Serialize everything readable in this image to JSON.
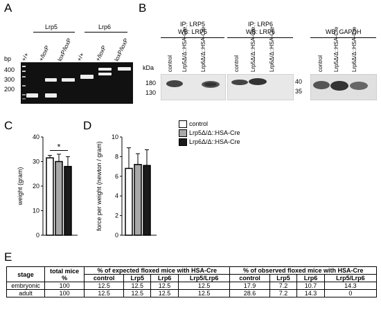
{
  "panel_letters": [
    "A",
    "B",
    "C",
    "D",
    "E"
  ],
  "panelA": {
    "gene_labels": [
      "Lrp5",
      "Lrp6"
    ],
    "lane_labels": [
      "+/+",
      "+/loxP",
      "loxP/loxP",
      "+/+",
      "+/loxP",
      "loxP/loxP"
    ],
    "bp_label": "bp",
    "bp_ticks": [
      "400",
      "300",
      "200"
    ]
  },
  "panelB": {
    "blot1_header": [
      "IP: LRP5",
      "WB: LRP5"
    ],
    "blot2_header": [
      "IP: LRP6",
      "WB: LRP6"
    ],
    "blot3_header": [
      "WB: GAPDH"
    ],
    "lanes": [
      "control",
      "Lrp5Δ/Δ::HSA-Cre",
      "Lrp6Δ/Δ::HSA-Cre"
    ],
    "kda_label": "kDa",
    "kda_ticks_left": [
      "180",
      "130"
    ],
    "kda_ticks_right": [
      "40",
      "35"
    ]
  },
  "legend": [
    "control",
    "Lrp5Δ/Δ::HSA-Cre",
    "Lrp6Δ/Δ::HSA-Cre"
  ],
  "legend_colors": [
    "#ffffff",
    "#a8a8a8",
    "#1a1a1a"
  ],
  "chart_data": [
    {
      "type": "bar",
      "categories": [
        "control",
        "Lrp5Δ/Δ::HSA-Cre",
        "Lrp6Δ/Δ::HSA-Cre"
      ],
      "values": [
        31.5,
        30,
        28
      ],
      "errors": [
        1,
        3,
        4
      ],
      "ylabel": "weight (gram)",
      "yticks": [
        0,
        10,
        20,
        30,
        40
      ],
      "ylim": [
        0,
        40
      ],
      "annotation": "*"
    },
    {
      "type": "bar",
      "categories": [
        "control",
        "Lrp5Δ/Δ::HSA-Cre",
        "Lrp6Δ/Δ::HSA-Cre"
      ],
      "values": [
        6.8,
        7.2,
        7.1
      ],
      "errors": [
        2.1,
        1.1,
        1.6
      ],
      "ylabel": "force per weight (newton / gram)",
      "yticks": [
        0,
        2,
        4,
        6,
        8,
        10
      ],
      "ylim": [
        0,
        10
      ]
    }
  ],
  "tableE": {
    "header1": [
      "stage",
      "total mice %",
      "% of expected floxed mice with HSA-Cre",
      "% of observed floxed mice with HSA-Cre"
    ],
    "sub": [
      "control",
      "Lrp5",
      "Lrp6",
      "Lrp5/Lrp6",
      "control",
      "Lrp5",
      "Lrp6",
      "Lrp5/Lrp6"
    ],
    "rows": [
      [
        "embryonic",
        "100",
        "12.5",
        "12.5",
        "12.5",
        "12.5",
        "17.9",
        "7.2",
        "10.7",
        "14.3"
      ],
      [
        "adult",
        "100",
        "12.5",
        "12.5",
        "12.5",
        "12.5",
        "28.6",
        "7.2",
        "14.3",
        "0"
      ]
    ]
  }
}
